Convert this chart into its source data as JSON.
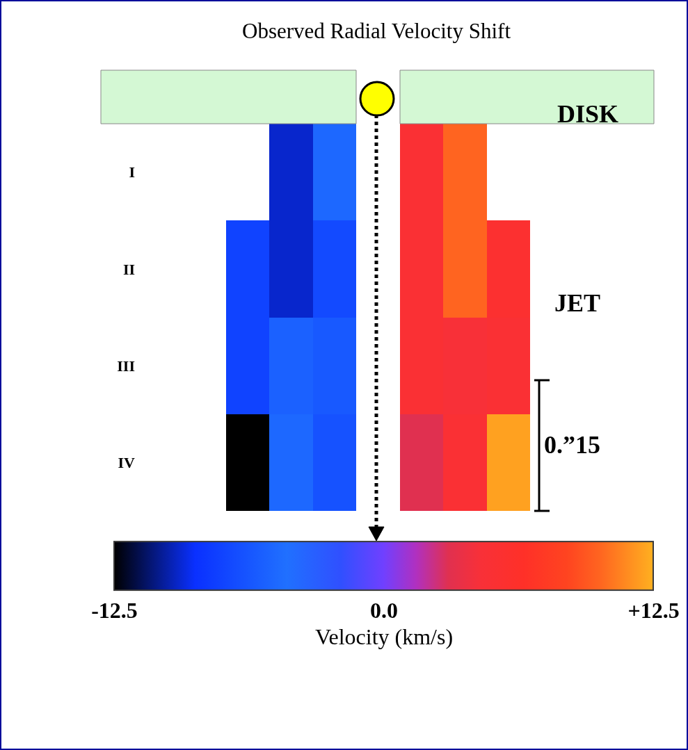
{
  "chart_data": {
    "type": "heatmap",
    "title": "Observed Radial Velocity Shift",
    "clabel": "Velocity (km/s)",
    "categories": [
      null,
      null,
      null,
      null,
      null,
      null,
      null
    ],
    "y_categories": [
      "I",
      "II",
      "III",
      "IV"
    ],
    "cells": [
      [
        null,
        -9.5,
        -5,
        null,
        5,
        10,
        null
      ],
      [
        -7.5,
        -9.5,
        -7,
        null,
        5,
        10,
        5.5
      ],
      [
        -7.5,
        -5.5,
        -6,
        null,
        5,
        4.5,
        5
      ],
      [
        -12.5,
        -5,
        -6.5,
        null,
        3,
        5,
        12
      ]
    ],
    "clim": [
      -12.5,
      12.5
    ],
    "cticks": [
      -12.5,
      {
        "value": 0,
        "label": "0.0"
      },
      {
        "value": 12.5,
        "label": "+12.5"
      }
    ],
    "annotations": [
      "DISK",
      "JET",
      "0.”15"
    ],
    "tick_labels": "y"
  }
}
